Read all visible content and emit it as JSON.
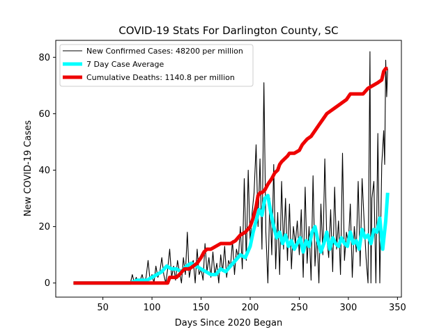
{
  "chart_data": {
    "type": "line",
    "title": "COVID-19 Stats For Darlington County, SC",
    "xlabel": "Days Since 2020 Began",
    "ylabel": "New COVID-19 Cases",
    "xlim": [
      2,
      354
    ],
    "ylim": [
      -5,
      86
    ],
    "xticks": [
      50,
      100,
      150,
      200,
      250,
      300,
      350
    ],
    "yticks": [
      0,
      20,
      40,
      60,
      80
    ],
    "grid": false,
    "legend_position": "top-left",
    "series": [
      {
        "name": "New Confirmed Cases: 48200 per million",
        "color": "#000000",
        "x": [
          20,
          40,
          60,
          78,
          80,
          82,
          84,
          86,
          88,
          90,
          92,
          94,
          96,
          98,
          100,
          102,
          104,
          106,
          108,
          110,
          112,
          114,
          116,
          118,
          120,
          122,
          124,
          126,
          128,
          130,
          132,
          134,
          136,
          138,
          140,
          142,
          144,
          146,
          148,
          150,
          152,
          154,
          156,
          158,
          160,
          162,
          164,
          166,
          168,
          170,
          172,
          174,
          176,
          178,
          180,
          182,
          184,
          186,
          188,
          190,
          192,
          194,
          196,
          198,
          200,
          202,
          204,
          206,
          208,
          210,
          212,
          214,
          216,
          218,
          220,
          222,
          224,
          226,
          228,
          230,
          232,
          234,
          236,
          238,
          240,
          242,
          244,
          246,
          248,
          250,
          252,
          254,
          256,
          258,
          260,
          262,
          264,
          266,
          268,
          270,
          272,
          274,
          276,
          278,
          280,
          282,
          284,
          286,
          288,
          290,
          292,
          294,
          296,
          298,
          300,
          302,
          304,
          306,
          308,
          310,
          312,
          314,
          316,
          318,
          320,
          322,
          323,
          324,
          326,
          328,
          330,
          332,
          334,
          336,
          337,
          338,
          339,
          340
        ],
        "values": [
          0,
          0,
          0,
          0,
          3,
          0,
          2,
          0,
          1,
          3,
          0,
          2,
          8,
          1,
          3,
          0,
          6,
          2,
          4,
          9,
          3,
          0,
          5,
          12,
          2,
          6,
          1,
          8,
          4,
          0,
          9,
          3,
          18,
          2,
          6,
          8,
          0,
          12,
          3,
          5,
          1,
          14,
          4,
          9,
          2,
          11,
          3,
          7,
          0,
          10,
          4,
          13,
          2,
          8,
          6,
          15,
          3,
          12,
          9,
          20,
          5,
          37,
          8,
          40,
          14,
          25,
          32,
          49,
          20,
          44,
          12,
          71,
          18,
          0,
          30,
          10,
          42,
          5,
          25,
          3,
          36,
          12,
          30,
          8,
          28,
          5,
          20,
          14,
          22,
          10,
          26,
          2,
          34,
          7,
          20,
          1,
          38,
          6,
          18,
          0,
          28,
          10,
          44,
          16,
          9,
          26,
          4,
          34,
          12,
          22,
          3,
          46,
          8,
          18,
          14,
          28,
          2,
          20,
          11,
          36,
          6,
          37,
          22,
          9,
          0,
          82,
          0,
          30,
          36,
          0,
          53,
          0,
          42,
          54,
          42,
          79,
          66,
          76
        ]
      },
      {
        "name": "7 Day Case Average",
        "color": "#00ffff",
        "x": [
          20,
          40,
          60,
          78,
          85,
          90,
          95,
          100,
          105,
          110,
          115,
          120,
          125,
          130,
          135,
          140,
          145,
          150,
          155,
          160,
          165,
          170,
          175,
          180,
          185,
          190,
          195,
          200,
          203,
          206,
          209,
          212,
          215,
          218,
          221,
          224,
          227,
          230,
          233,
          236,
          239,
          242,
          245,
          248,
          251,
          254,
          257,
          260,
          263,
          266,
          269,
          272,
          275,
          278,
          281,
          284,
          287,
          290,
          293,
          296,
          299,
          302,
          305,
          308,
          311,
          314,
          317,
          320,
          323,
          326,
          329,
          332,
          335,
          338,
          340
        ],
        "values": [
          0,
          0,
          0,
          0,
          1,
          1,
          1,
          2,
          3,
          4,
          6,
          5,
          5,
          4,
          6,
          7,
          6,
          5,
          4,
          3,
          3,
          5,
          4,
          6,
          8,
          10,
          9,
          13,
          18,
          22,
          26,
          24,
          30,
          31,
          25,
          20,
          16,
          18,
          14,
          17,
          13,
          15,
          12,
          14,
          16,
          11,
          15,
          13,
          18,
          20,
          15,
          11,
          14,
          18,
          12,
          16,
          14,
          13,
          16,
          14,
          13,
          18,
          14,
          15,
          12,
          19,
          16,
          17,
          14,
          19,
          18,
          23,
          12,
          22,
          32
        ]
      },
      {
        "name": "Cumulative Deaths: 1140.8 per million",
        "color": "#ee0000",
        "x": [
          20,
          60,
          100,
          116,
          118,
          125,
          128,
          133,
          138,
          142,
          146,
          150,
          153,
          156,
          160,
          165,
          170,
          180,
          185,
          190,
          195,
          200,
          203,
          206,
          208,
          210,
          212,
          215,
          218,
          220,
          222,
          225,
          228,
          230,
          232,
          235,
          238,
          240,
          245,
          250,
          253,
          258,
          262,
          266,
          270,
          274,
          278,
          282,
          286,
          290,
          294,
          298,
          302,
          306,
          310,
          315,
          320,
          325,
          330,
          334,
          336,
          338,
          340
        ],
        "values": [
          0,
          0,
          0,
          0,
          2,
          2,
          3,
          5,
          5,
          6,
          7,
          9,
          11,
          12,
          12,
          13,
          14,
          14,
          15,
          17,
          18,
          20,
          23,
          27,
          31,
          32,
          32,
          33,
          35,
          36,
          37,
          39,
          40,
          42,
          43,
          44,
          45,
          46,
          46,
          47,
          49,
          51,
          52,
          54,
          56,
          58,
          60,
          61,
          62,
          63,
          64,
          65,
          67,
          67,
          67,
          67,
          69,
          70,
          71,
          72,
          75,
          76,
          76
        ]
      }
    ]
  }
}
